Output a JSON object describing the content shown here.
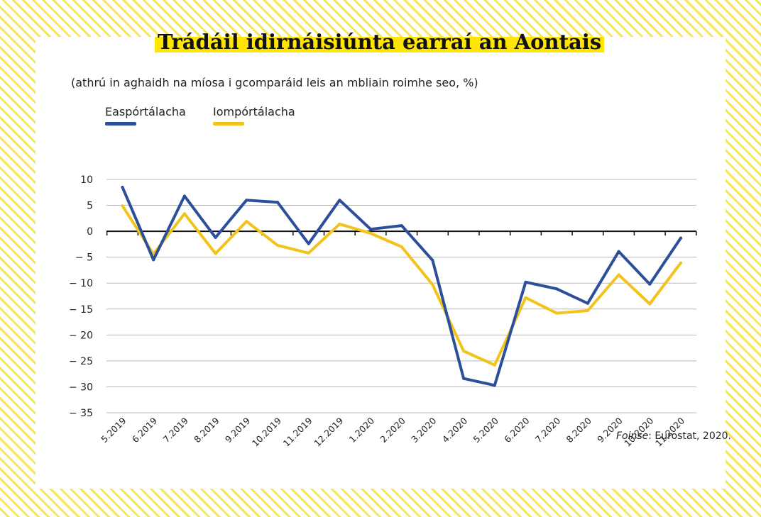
{
  "chart_data": {
    "type": "line",
    "title": "Trádáil idirnáisiúnta earraí an Aontais",
    "subtitle": "(athrú in aghaidh na míosa i gcomparáid leis an mbliain roimhe seo, %)",
    "categories": [
      "5.2019",
      "6.2019",
      "7.2019",
      "8.2019",
      "9.2019",
      "10.2019",
      "11.2019",
      "12.2019",
      "1.2020",
      "2.2020",
      "3.2020",
      "4.2020",
      "5.2020",
      "6.2020",
      "7.2020",
      "8.2020",
      "9.2020",
      "10.2020",
      "11.2020"
    ],
    "series": [
      {
        "name": "Easpórtálacha",
        "color": "#2b4f9a",
        "values": [
          8.5,
          -5.5,
          6.8,
          -1.2,
          6.0,
          5.6,
          -2.4,
          6.0,
          0.4,
          1.1,
          -5.6,
          -28.4,
          -29.7,
          -9.8,
          -11.1,
          -13.9,
          -3.9,
          -10.2,
          -1.3
        ]
      },
      {
        "name": "Iompórtálacha",
        "color": "#f2c31b",
        "values": [
          4.9,
          -4.4,
          3.4,
          -4.3,
          1.9,
          -2.7,
          -4.2,
          1.4,
          -0.4,
          -3.0,
          -10.3,
          -23.1,
          -25.8,
          -12.8,
          -15.8,
          -15.3,
          -8.4,
          -14.0,
          -6.1
        ]
      }
    ],
    "yticks": [
      "10",
      "5",
      "0",
      "− 5",
      "− 10",
      "− 15",
      "− 20",
      "− 25",
      "− 30",
      "− 35"
    ],
    "ytick_values": [
      10,
      5,
      0,
      -5,
      -10,
      -15,
      -20,
      -25,
      -30,
      -35
    ],
    "ylim": [
      -35,
      10
    ],
    "xlabel": "",
    "ylabel": "",
    "grid": true,
    "legend_position": "top-left",
    "source_prefix": "Foinse",
    "source_rest": ": Eurostat, 2020."
  }
}
